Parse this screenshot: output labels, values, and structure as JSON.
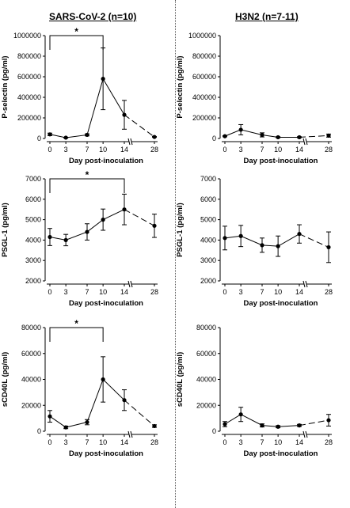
{
  "columns": [
    {
      "title": "SARS-CoV-2 (n=10)"
    },
    {
      "title": "H3N2 (n=7-11)"
    }
  ],
  "chart_data": [
    {
      "type": "line",
      "panel": "sars-pselectin",
      "x": [
        0,
        3,
        7,
        10,
        14,
        28
      ],
      "x_ticks": [
        "0",
        "3",
        "7",
        "10",
        "14",
        "28"
      ],
      "xlabel": "Day post-inoculation",
      "ylabel": "P-selectin (pg/ml)",
      "ylim": [
        0,
        1000000
      ],
      "y_ticks": [
        "0",
        "200000",
        "400000",
        "600000",
        "800000",
        "1000000"
      ],
      "y": [
        40000,
        8000,
        35000,
        580000,
        230000,
        15000
      ],
      "err": [
        12000,
        4000,
        10000,
        300000,
        140000,
        4000
      ],
      "significance": {
        "from": 0,
        "to": 10,
        "label": "*"
      }
    },
    {
      "type": "line",
      "panel": "h3n2-pselectin",
      "x": [
        0,
        3,
        7,
        10,
        14,
        28
      ],
      "x_ticks": [
        "0",
        "3",
        "7",
        "10",
        "14",
        "28"
      ],
      "xlabel": "Day post-inoculation",
      "ylabel": "P-selectin (pg/ml)",
      "ylim": [
        0,
        1000000
      ],
      "y_ticks": [
        "0",
        "200000",
        "400000",
        "600000",
        "800000",
        "1000000"
      ],
      "y": [
        22000,
        85000,
        35000,
        12000,
        12000,
        28000
      ],
      "err": [
        5000,
        50000,
        20000,
        5000,
        5000,
        15000
      ]
    },
    {
      "type": "line",
      "panel": "sars-psgl1",
      "x": [
        0,
        3,
        7,
        10,
        14,
        28
      ],
      "x_ticks": [
        "0",
        "3",
        "7",
        "10",
        "14",
        "28"
      ],
      "xlabel": "Day post-inoculation",
      "ylabel": "PSGL-1 (pg/ml)",
      "ylim": [
        2000,
        7000
      ],
      "y_ticks": [
        "2000",
        "3000",
        "4000",
        "5000",
        "6000",
        "7000"
      ],
      "y": [
        4150,
        4000,
        4400,
        5000,
        5500,
        4700
      ],
      "err": [
        420,
        280,
        400,
        520,
        750,
        570
      ],
      "significance": {
        "from": 0,
        "to": 14,
        "label": "*"
      }
    },
    {
      "type": "line",
      "panel": "h3n2-psgl1",
      "x": [
        0,
        3,
        7,
        10,
        14,
        28
      ],
      "x_ticks": [
        "0",
        "3",
        "7",
        "10",
        "14",
        "28"
      ],
      "xlabel": "Day post-inoculation",
      "ylabel": "PSGL-1 (pg/ml)",
      "ylim": [
        2000,
        7000
      ],
      "y_ticks": [
        "2000",
        "3000",
        "4000",
        "5000",
        "6000",
        "7000"
      ],
      "y": [
        4100,
        4200,
        3750,
        3700,
        4300,
        3650
      ],
      "err": [
        580,
        520,
        350,
        500,
        450,
        750
      ]
    },
    {
      "type": "line",
      "panel": "sars-scd40l",
      "x": [
        0,
        3,
        7,
        10,
        14,
        28
      ],
      "x_ticks": [
        "0",
        "3",
        "7",
        "10",
        "14",
        "28"
      ],
      "xlabel": "Day post-inoculation",
      "ylabel": "sCD40L (pg/ml)",
      "ylim": [
        0,
        80000
      ],
      "y_ticks": [
        "0",
        "20000",
        "40000",
        "60000",
        "80000"
      ],
      "y": [
        11500,
        3000,
        7000,
        40000,
        24000,
        4000
      ],
      "err": [
        4500,
        1000,
        2000,
        17500,
        8000,
        1000
      ],
      "significance": {
        "from": 0,
        "to": 10,
        "label": "*"
      }
    },
    {
      "type": "line",
      "panel": "h3n2-scd40l",
      "x": [
        0,
        3,
        7,
        10,
        14,
        28
      ],
      "x_ticks": [
        "0",
        "3",
        "7",
        "10",
        "14",
        "28"
      ],
      "xlabel": "Day post-inoculation",
      "ylabel": "sCD40L (pg/ml)",
      "ylim": [
        0,
        80000
      ],
      "y_ticks": [
        "0",
        "20000",
        "40000",
        "60000",
        "80000"
      ],
      "y": [
        5500,
        13000,
        4500,
        3500,
        4500,
        8500
      ],
      "err": [
        2000,
        5500,
        1200,
        800,
        800,
        4500
      ]
    }
  ]
}
